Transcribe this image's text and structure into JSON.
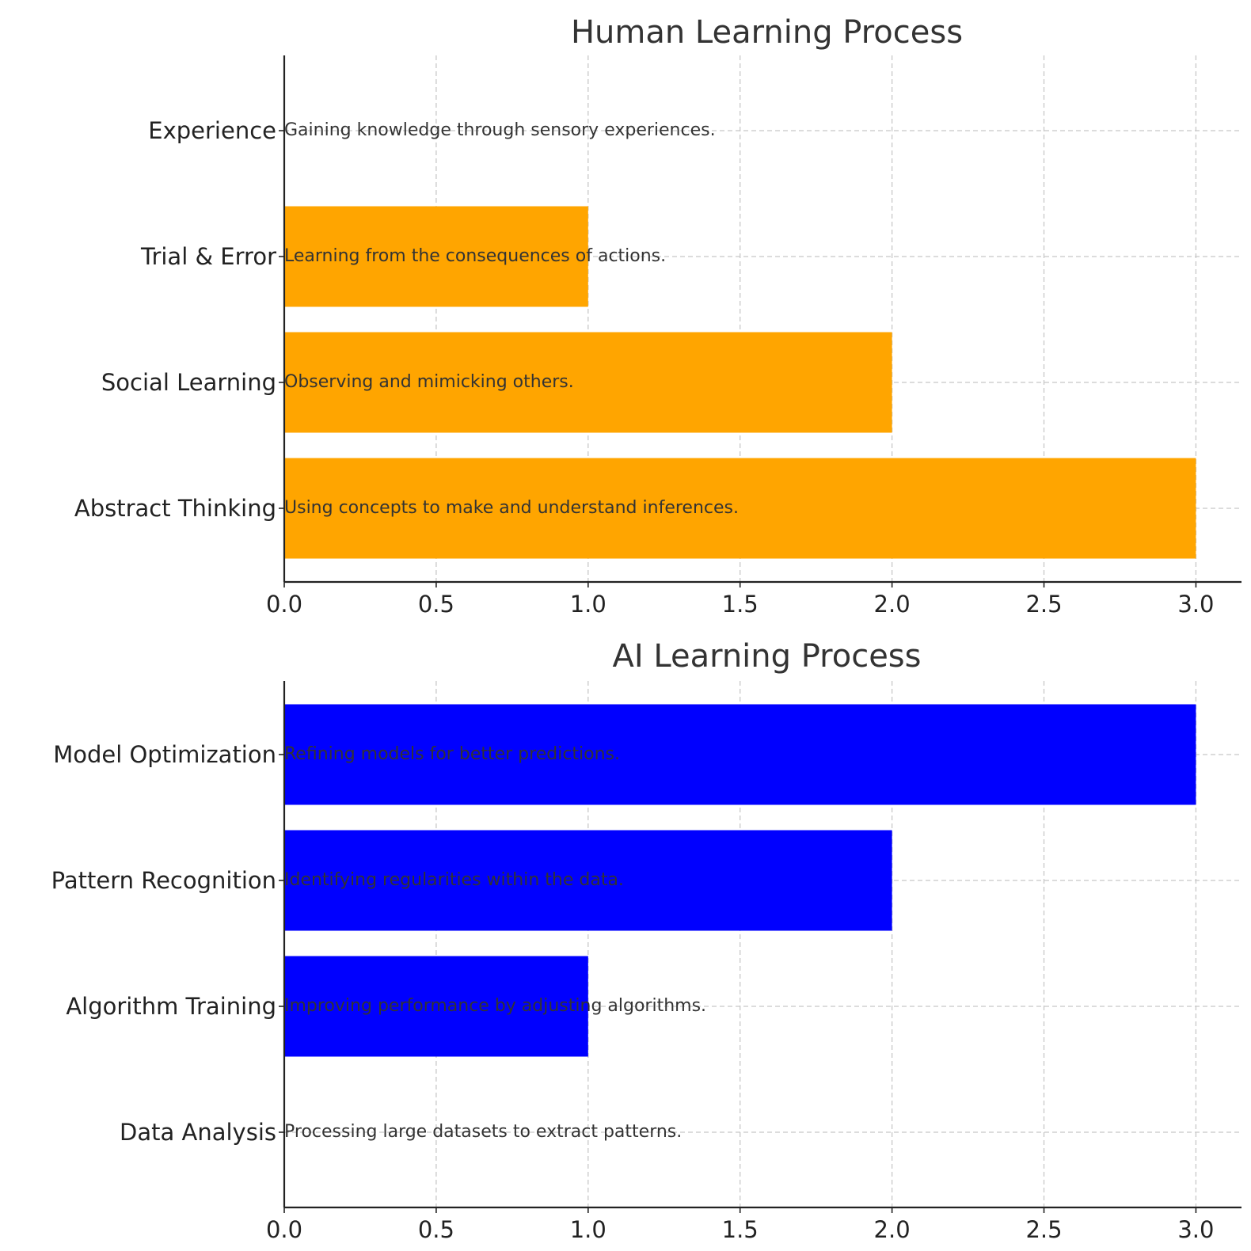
{
  "chart_data": [
    {
      "type": "bar",
      "orientation": "horizontal",
      "title": "Human Learning Process",
      "color": "#FFA500",
      "categories": [
        "Experience",
        "Trial & Error",
        "Social Learning",
        "Abstract Thinking"
      ],
      "values": [
        0,
        1,
        2,
        3
      ],
      "annotations": [
        "Gaining knowledge through sensory experiences.",
        "Learning from the consequences of actions.",
        "Observing and mimicking others.",
        "Using concepts to make and understand inferences."
      ],
      "xlim": [
        0,
        3.15
      ],
      "xticks": [
        "0.0",
        "0.5",
        "1.0",
        "1.5",
        "2.0",
        "2.5",
        "3.0"
      ],
      "grid": true
    },
    {
      "type": "bar",
      "orientation": "horizontal",
      "title": "AI Learning Process",
      "color": "#0000FF",
      "categories": [
        "Model Optimization",
        "Pattern Recognition",
        "Algorithm Training",
        "Data Analysis"
      ],
      "values": [
        3,
        2,
        1,
        0
      ],
      "annotations": [
        "Refining models for better predictions.",
        "Identifying regularities within the data.",
        "Improving performance by adjusting algorithms.",
        "Processing large datasets to extract patterns."
      ],
      "xlim": [
        0,
        3.15
      ],
      "xticks": [
        "0.0",
        "0.5",
        "1.0",
        "1.5",
        "2.0",
        "2.5",
        "3.0"
      ],
      "grid": true
    }
  ]
}
